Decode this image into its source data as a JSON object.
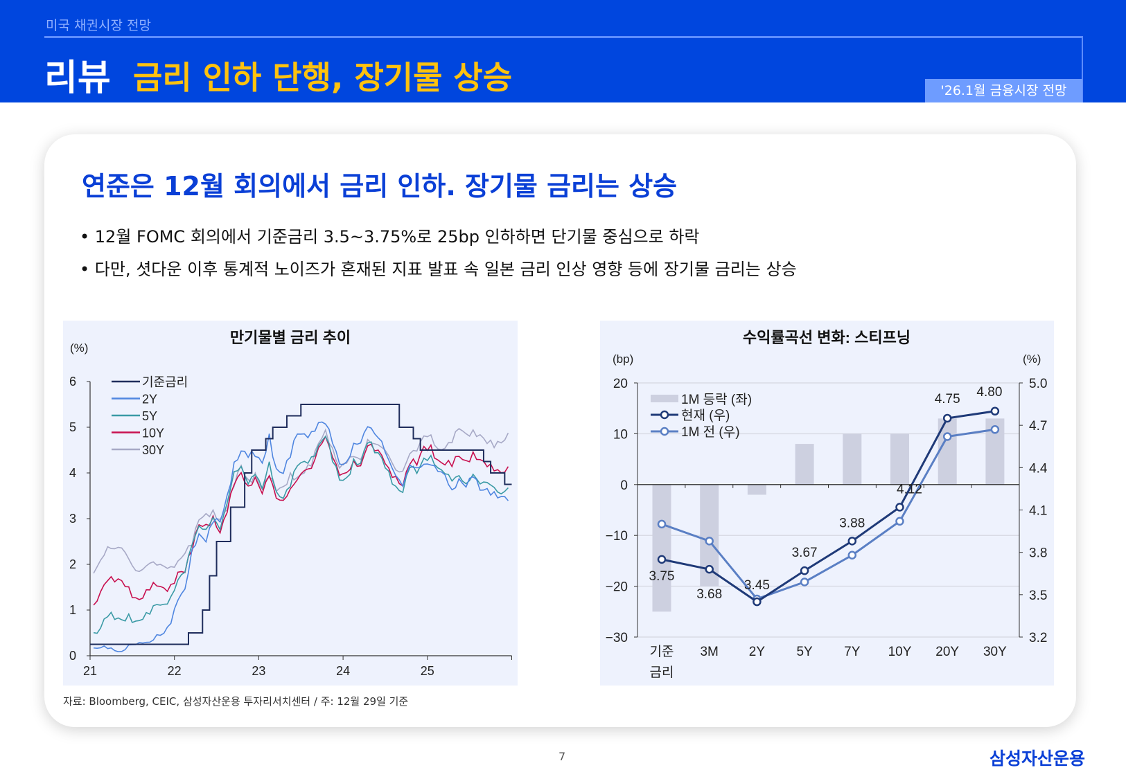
{
  "header": {
    "breadcrumb": "미국 채권시장 전망",
    "section": "리뷰",
    "title": "금리 인하 단행, 장기물 상승",
    "badge": "'26.1월 금융시장 전망"
  },
  "main": {
    "headline": "연준은 12월 회의에서 금리 인하. 장기물 금리는 상승",
    "bullets": [
      "• 12월 FOMC 회의에서 기준금리 3.5~3.75%로 25bp 인하하면 단기물 중심으로 하락",
      "• 다만, 셧다운 이후 통계적 노이즈가 혼재된 지표 발표 속 일본 금리 인상 영향 등에 장기물 금리는 상승"
    ],
    "source": "자료: Bloomberg, CEIC, 삼성자산운용 투자리서치센터 / 주: 12월 29일 기준"
  },
  "footer": {
    "page": "7",
    "logo": "삼성자산운용"
  },
  "chart_data": [
    {
      "type": "line",
      "title": "만기물별 금리 추이",
      "ylabel": "(%)",
      "ylim": [
        0,
        6
      ],
      "yticks": [
        "0",
        "1",
        "2",
        "3",
        "4",
        "5",
        "6"
      ],
      "xticks": [
        "21",
        "22",
        "23",
        "24",
        "25"
      ],
      "xlim": [
        "2021-01",
        "2025-12"
      ],
      "legend": "top-left",
      "x_frequency": "monthly",
      "series": [
        {
          "name": "기준금리",
          "color": "#1F2D5C",
          "step": true,
          "steps": [
            [
              "2021-01",
              0.25
            ],
            [
              "2022-03",
              0.5
            ],
            [
              "2022-05",
              1.0
            ],
            [
              "2022-06",
              1.75
            ],
            [
              "2022-07",
              2.5
            ],
            [
              "2022-09",
              3.25
            ],
            [
              "2022-11",
              4.0
            ],
            [
              "2022-12",
              4.5
            ],
            [
              "2023-02",
              4.75
            ],
            [
              "2023-03",
              5.0
            ],
            [
              "2023-05",
              5.25
            ],
            [
              "2023-07",
              5.5
            ],
            [
              "2024-09",
              5.0
            ],
            [
              "2024-11",
              4.75
            ],
            [
              "2024-12",
              4.5
            ],
            [
              "2025-09",
              4.25
            ],
            [
              "2025-10",
              4.0
            ],
            [
              "2025-12",
              3.75
            ]
          ]
        },
        {
          "name": "2Y",
          "color": "#4F86E0",
          "values": [
            0.12,
            0.12,
            0.15,
            0.16,
            0.15,
            0.25,
            0.2,
            0.22,
            0.28,
            0.5,
            0.55,
            0.73,
            1.18,
            1.4,
            2.3,
            2.7,
            2.55,
            2.95,
            2.9,
            3.45,
            4.2,
            4.5,
            4.4,
            4.4,
            4.2,
            4.8,
            4.05,
            4.0,
            4.4,
            4.9,
            4.85,
            4.85,
            5.05,
            5.07,
            4.7,
            4.25,
            4.25,
            4.6,
            4.6,
            5.0,
            4.9,
            4.75,
            4.3,
            3.9,
            3.65,
            4.15,
            4.15,
            4.25,
            4.2,
            4.0,
            3.9,
            3.6,
            3.9,
            3.75,
            3.95,
            3.6,
            3.6,
            3.55,
            3.5,
            3.45
          ]
        },
        {
          "name": "5Y",
          "color": "#3A9AA5",
          "values": [
            0.45,
            0.6,
            0.9,
            0.85,
            0.8,
            0.87,
            0.7,
            0.78,
            0.95,
            1.18,
            1.15,
            1.26,
            1.6,
            1.8,
            2.45,
            2.9,
            2.8,
            3.0,
            2.7,
            3.3,
            4.05,
            4.2,
            3.8,
            3.95,
            3.6,
            4.2,
            3.6,
            3.5,
            3.75,
            4.15,
            4.2,
            4.3,
            4.6,
            4.85,
            4.3,
            3.85,
            3.85,
            4.25,
            4.2,
            4.7,
            4.5,
            4.35,
            4.0,
            3.65,
            3.55,
            4.15,
            4.05,
            4.35,
            4.35,
            4.05,
            3.95,
            3.85,
            4.0,
            3.8,
            3.95,
            3.7,
            3.75,
            3.7,
            3.6,
            3.72
          ]
        },
        {
          "name": "10Y",
          "color": "#C8104F",
          "values": [
            1.1,
            1.45,
            1.7,
            1.63,
            1.6,
            1.45,
            1.25,
            1.3,
            1.5,
            1.55,
            1.45,
            1.5,
            1.8,
            1.85,
            2.35,
            2.9,
            2.85,
            3.0,
            2.65,
            3.15,
            3.8,
            4.05,
            3.7,
            3.85,
            3.5,
            3.95,
            3.5,
            3.45,
            3.65,
            3.8,
            4.0,
            4.1,
            4.6,
            4.85,
            4.35,
            3.9,
            3.95,
            4.25,
            4.2,
            4.65,
            4.5,
            4.35,
            4.05,
            3.9,
            3.75,
            4.25,
            4.2,
            4.55,
            4.55,
            4.25,
            4.2,
            4.2,
            4.4,
            4.25,
            4.4,
            4.25,
            4.15,
            4.1,
            4.05,
            4.13
          ]
        },
        {
          "name": "30Y",
          "color": "#A7A9C6",
          "values": [
            1.85,
            2.15,
            2.4,
            2.3,
            2.3,
            2.1,
            1.9,
            1.95,
            2.05,
            1.95,
            1.9,
            1.92,
            2.1,
            2.3,
            2.45,
            2.95,
            3.05,
            3.15,
            3.0,
            3.25,
            3.75,
            4.15,
            3.8,
            3.95,
            3.65,
            3.95,
            3.65,
            3.7,
            3.95,
            3.85,
            4.0,
            4.2,
            4.7,
            4.95,
            4.5,
            4.05,
            4.2,
            4.4,
            4.35,
            4.75,
            4.6,
            4.5,
            4.35,
            4.1,
            4.1,
            4.45,
            4.45,
            4.75,
            4.8,
            4.55,
            4.6,
            4.7,
            4.95,
            4.8,
            4.9,
            4.85,
            4.7,
            4.6,
            4.65,
            4.82
          ]
        }
      ]
    },
    {
      "type": "bar+line",
      "title": "수익률곡선 변화: 스티프닝",
      "ylabel_left": "(bp)",
      "ylabel_right": "(%)",
      "ylim_left": [
        -30,
        20
      ],
      "ylim_right": [
        3.2,
        5.0
      ],
      "yticks_left": [
        "20",
        "10",
        "0",
        "−10",
        "−20",
        "−30"
      ],
      "yticks_right": [
        "5.0",
        "4.7",
        "4.4",
        "4.1",
        "3.8",
        "3.5",
        "3.2"
      ],
      "categories": [
        "기준금리",
        "3M",
        "2Y",
        "5Y",
        "7Y",
        "10Y",
        "20Y",
        "30Y"
      ],
      "category_lines": [
        [
          "기준",
          "금리"
        ],
        [
          "3M"
        ],
        [
          "2Y"
        ],
        [
          "5Y"
        ],
        [
          "7Y"
        ],
        [
          "10Y"
        ],
        [
          "20Y"
        ],
        [
          "30Y"
        ]
      ],
      "legend": "top-left",
      "series": [
        {
          "name": "1M 등락 (좌)",
          "type": "bar",
          "axis": "left",
          "color": "#CDD0E0",
          "values": [
            -25,
            -20,
            -2,
            8,
            10,
            10,
            13,
            13
          ]
        },
        {
          "name": "현재 (우)",
          "type": "line",
          "axis": "right",
          "color": "#1F3A78",
          "values": [
            3.75,
            3.68,
            3.45,
            3.67,
            3.88,
            4.12,
            4.75,
            4.8
          ],
          "labels": [
            "3.75",
            "3.68",
            "3.45",
            "3.67",
            "3.88",
            "4.12",
            "4.75",
            "4.80"
          ]
        },
        {
          "name": "1M 전 (우)",
          "type": "line",
          "axis": "right",
          "color": "#5A7FC4",
          "values": [
            4.0,
            3.88,
            3.47,
            3.59,
            3.78,
            4.02,
            4.62,
            4.67
          ]
        }
      ]
    }
  ]
}
